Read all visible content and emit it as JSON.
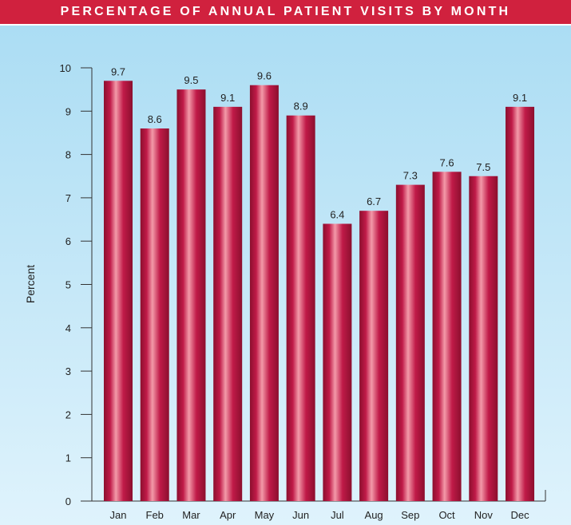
{
  "title": "PERCENTAGE OF ANNUAL PATIENT VISITS BY MONTH",
  "colors": {
    "title_bar": "#d0213e",
    "bar_dark": "#8c0f2e",
    "bar_mid": "#c01a48",
    "bar_light": "#f39aa9",
    "background_top": "#a9dcf3",
    "background_bottom": "#dff3fc"
  },
  "chart_data": {
    "type": "bar",
    "title": "PERCENTAGE OF ANNUAL PATIENT VISITS BY MONTH",
    "xlabel": "",
    "ylabel": "Percent",
    "categories": [
      "Jan",
      "Feb",
      "Mar",
      "Apr",
      "May",
      "Jun",
      "Jul",
      "Aug",
      "Sep",
      "Oct",
      "Nov",
      "Dec"
    ],
    "values": [
      9.7,
      8.6,
      9.5,
      9.1,
      9.6,
      8.9,
      6.4,
      6.7,
      7.3,
      7.6,
      7.5,
      9.1
    ],
    "data_labels": [
      "9.7",
      "8.6",
      "9.5",
      "9.1",
      "9.6",
      "8.9",
      "6.4",
      "6.7",
      "7.3",
      "7.6",
      "7.5",
      "9.1"
    ],
    "ylim": [
      0,
      10
    ],
    "yticks": [
      "0",
      "1",
      "2",
      "3",
      "4",
      "5",
      "6",
      "7",
      "8",
      "9",
      "10"
    ],
    "grid": false,
    "legend": "none"
  }
}
